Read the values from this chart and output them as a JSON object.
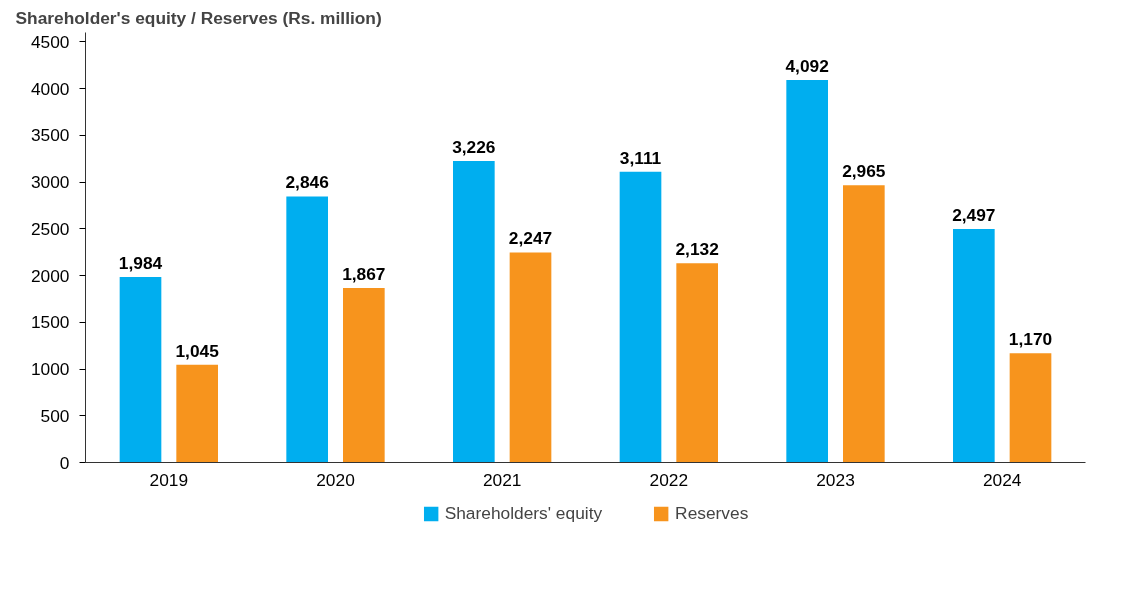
{
  "chart_data": {
    "type": "bar",
    "title": "Shareholder's equity / Reserves (Rs. million)",
    "categories": [
      "2019",
      "2020",
      "2021",
      "2022",
      "2023",
      "2024"
    ],
    "series": [
      {
        "name": "Shareholders' equity",
        "color": "#00aeef",
        "values": [
          1984,
          2846,
          3226,
          3111,
          4092,
          2497
        ],
        "value_labels": [
          "1,984",
          "2,846",
          "3,226",
          "3,111",
          "4,092",
          "2,497"
        ]
      },
      {
        "name": "Reserves",
        "color": "#f7941d",
        "values": [
          1045,
          1867,
          2247,
          2132,
          2965,
          1170
        ],
        "value_labels": [
          "1,045",
          "1,867",
          "2,247",
          "2,132",
          "2,965",
          "1,170"
        ]
      }
    ],
    "ylim": [
      0,
      4600
    ],
    "yticks": [
      0,
      500,
      1000,
      1500,
      2000,
      2500,
      3000,
      3500,
      4000,
      4500
    ],
    "grid": false,
    "legend": "bottom"
  }
}
